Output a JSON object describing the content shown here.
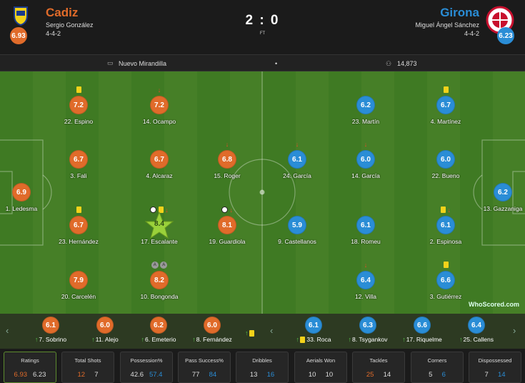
{
  "home": {
    "name": "Cadiz",
    "coach": "Sergio González",
    "formation": "4-4-2",
    "rating": "6.93",
    "color": "#e06b2a"
  },
  "away": {
    "name": "Girona",
    "coach": "Miguel Ángel Sánchez",
    "formation": "4-4-2",
    "rating": "6.23",
    "color": "#2a8dd6"
  },
  "score": "2 : 0",
  "status": "FT",
  "venue": "Nuevo Mirandilla",
  "attendance": "14,873",
  "brand": "WhoScored.com",
  "home_players": [
    {
      "num_name": "1. Ledesma",
      "rating": "6.9"
    },
    {
      "num_name": "22. Espino",
      "rating": "7.2"
    },
    {
      "num_name": "3. Fali",
      "rating": "6.7"
    },
    {
      "num_name": "23. Hernández",
      "rating": "6.7"
    },
    {
      "num_name": "20. Carcelén",
      "rating": "7.9"
    },
    {
      "num_name": "14. Ocampo",
      "rating": "7.2"
    },
    {
      "num_name": "4. Alcaraz",
      "rating": "6.7"
    },
    {
      "num_name": "17. Escalante",
      "rating": "8.4"
    },
    {
      "num_name": "10. Bongonda",
      "rating": "8.2"
    },
    {
      "num_name": "15. Roger",
      "rating": "6.8"
    },
    {
      "num_name": "19. Guardiola",
      "rating": "8.1"
    }
  ],
  "away_players": [
    {
      "num_name": "23. Martín",
      "rating": "6.2"
    },
    {
      "num_name": "24. García",
      "rating": "6.1"
    },
    {
      "num_name": "9. Castellanos",
      "rating": "5.9"
    },
    {
      "num_name": "14. García",
      "rating": "6.0"
    },
    {
      "num_name": "18. Romeu",
      "rating": "6.1"
    },
    {
      "num_name": "12. Villa",
      "rating": "6.4"
    },
    {
      "num_name": "4. Martínez",
      "rating": "6.7"
    },
    {
      "num_name": "22. Bueno",
      "rating": "6.0"
    },
    {
      "num_name": "2. Espinosa",
      "rating": "6.1"
    },
    {
      "num_name": "3. Gutiérrez",
      "rating": "6.6"
    },
    {
      "num_name": "13. Gazzaniga",
      "rating": "6.2"
    }
  ],
  "assist_letter": "A",
  "home_subs": [
    {
      "name": "7. Sobrino",
      "rating": "6.1"
    },
    {
      "name": "11. Alejo",
      "rating": "6.0"
    },
    {
      "name": "6. Emeterio",
      "rating": "6.2"
    },
    {
      "name": "8. Fernández",
      "rating": "6.0"
    }
  ],
  "away_subs": [
    {
      "name": "33. Roca",
      "rating": "6.1"
    },
    {
      "name": "8. Tsygankov",
      "rating": "6.3"
    },
    {
      "name": "17. Riquelme",
      "rating": "6.6"
    },
    {
      "name": "25. Callens",
      "rating": "6.4"
    }
  ],
  "stats": [
    {
      "label": "Ratings",
      "home": "6.93",
      "away": "6.23"
    },
    {
      "label": "Total Shots",
      "home": "12",
      "away": "7"
    },
    {
      "label": "Possession%",
      "home": "42.6",
      "away": "57.4"
    },
    {
      "label": "Pass Success%",
      "home": "77",
      "away": "84"
    },
    {
      "label": "Dribbles",
      "home": "13",
      "away": "16"
    },
    {
      "label": "Aerials Won",
      "home": "10",
      "away": "10"
    },
    {
      "label": "Tackles",
      "home": "25",
      "away": "14"
    },
    {
      "label": "Corners",
      "home": "5",
      "away": "6"
    },
    {
      "label": "Dispossessed",
      "home": "7",
      "away": "14"
    }
  ]
}
